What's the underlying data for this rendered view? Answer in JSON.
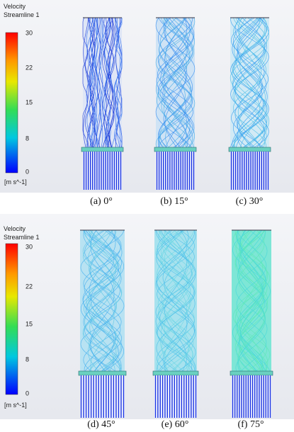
{
  "panels": [
    {
      "legend": {
        "title": "Velocity",
        "subtitle": "Streamline 1",
        "ticks": [
          "30",
          "22",
          "15",
          "8",
          "0"
        ],
        "unit": "[m s^-1]"
      },
      "captions": [
        "(a)  0°",
        "(b)  15°",
        "(c)  30°"
      ]
    },
    {
      "legend": {
        "title": "Velocity",
        "subtitle": "Streamline 1",
        "ticks": [
          "30",
          "22",
          "15",
          "8",
          "0"
        ],
        "unit": "[m s^-1]"
      },
      "captions": [
        "(d)  45°",
        "(e)  60°",
        "(f)  75°"
      ]
    }
  ]
}
